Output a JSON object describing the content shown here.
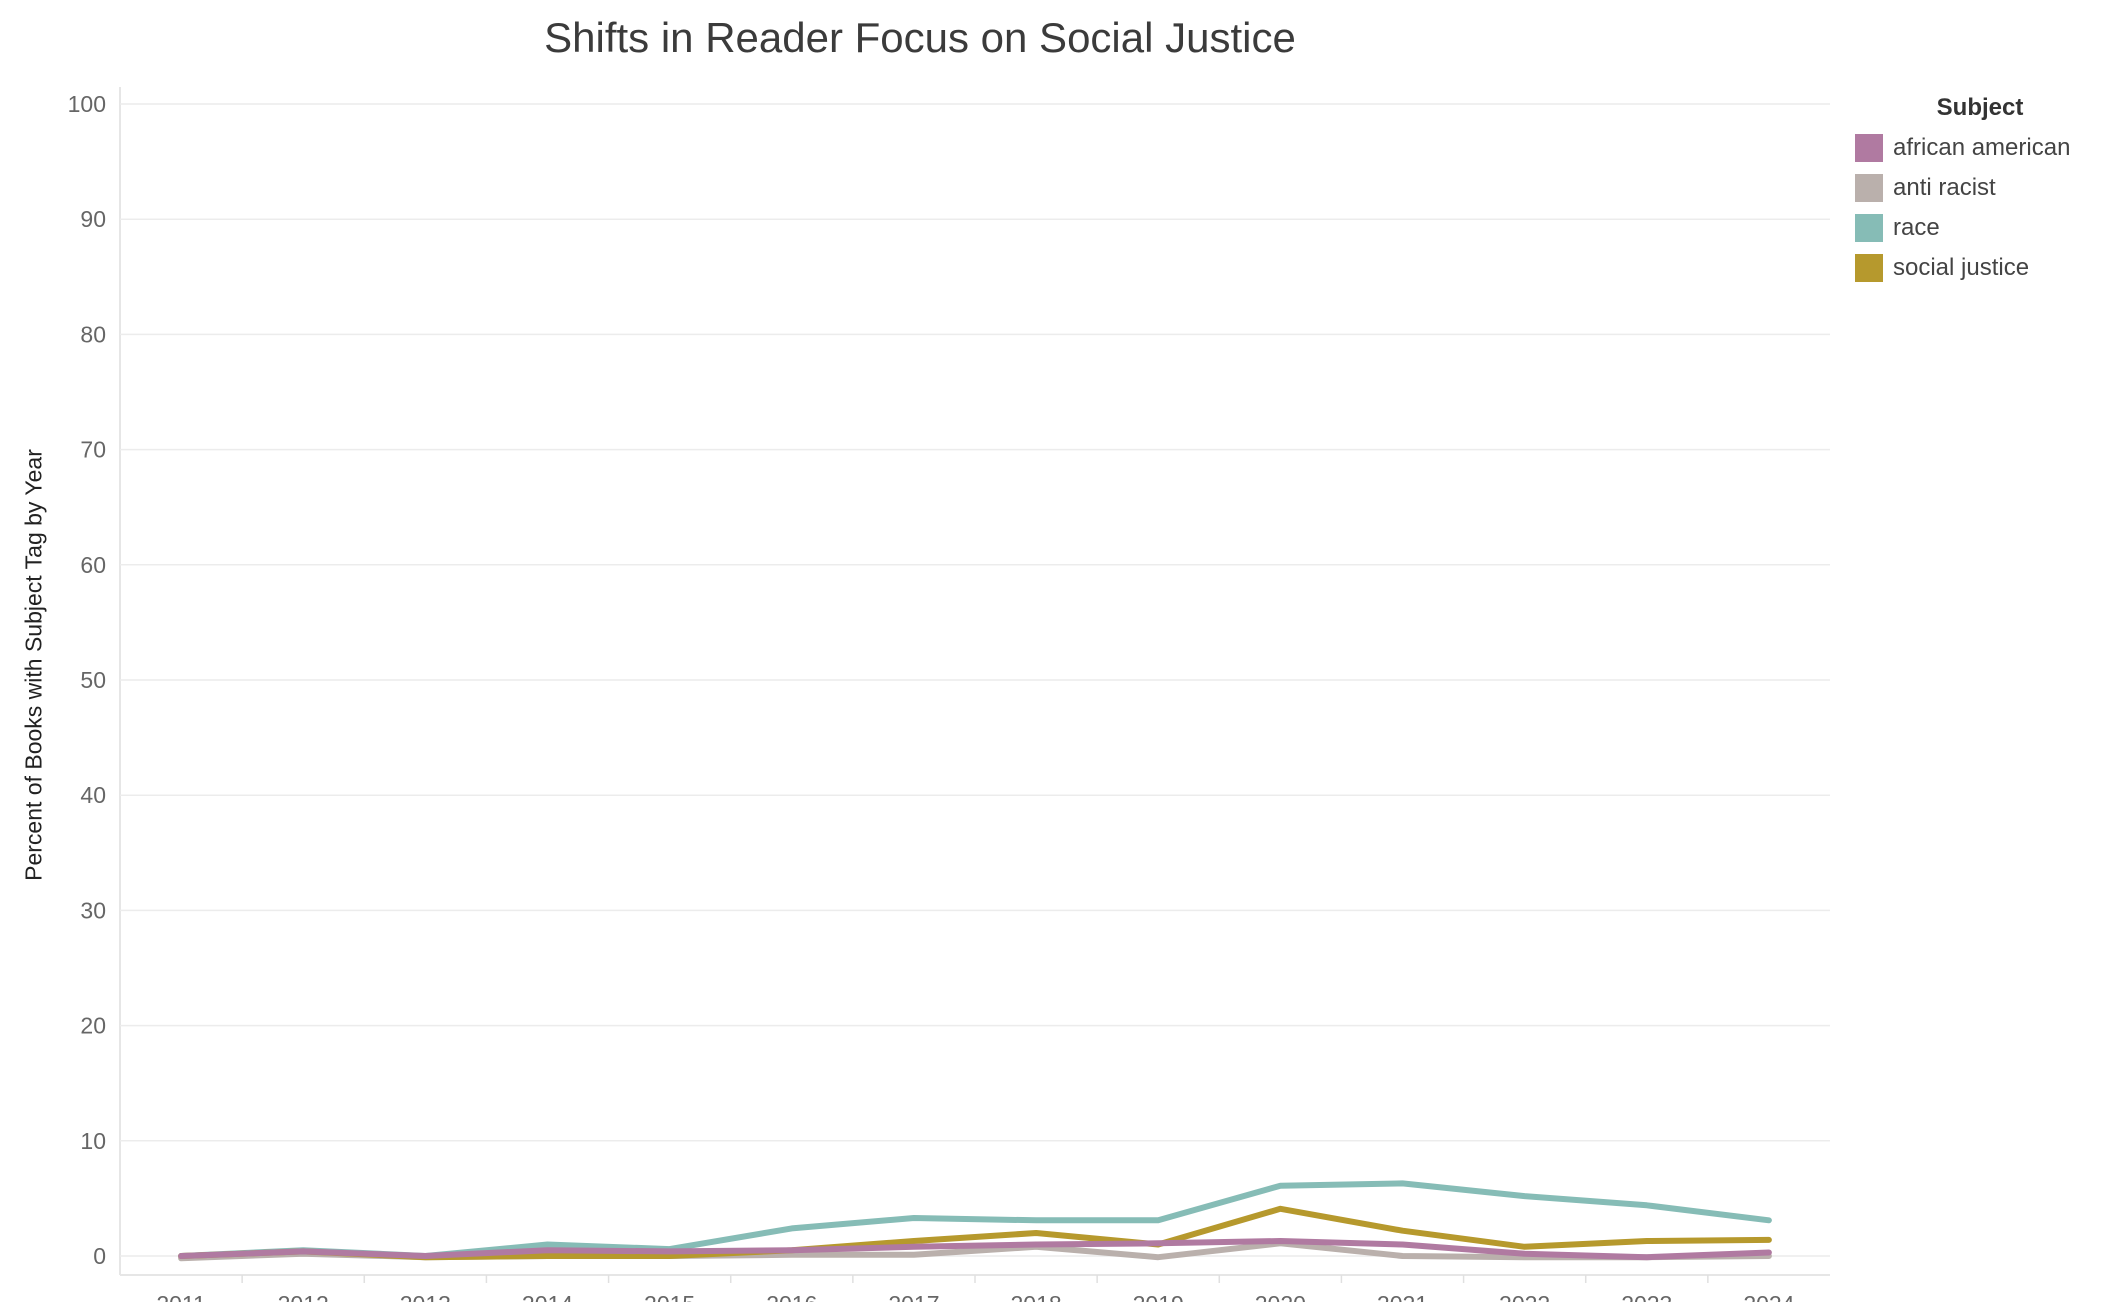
{
  "chart_data": {
    "type": "line",
    "title": "Shifts in Reader Focus on Social Justice",
    "ylabel": "Percent of Books with Subject Tag by Year",
    "xlabel": "",
    "ylim": [
      0,
      100
    ],
    "yticks": [
      0,
      10,
      20,
      30,
      40,
      50,
      60,
      70,
      80,
      90,
      100
    ],
    "x": [
      "2011",
      "2012",
      "2013",
      "2014",
      "2015",
      "2016",
      "2017",
      "2018",
      "2019",
      "2020",
      "2021",
      "2022",
      "2023",
      "2024"
    ],
    "legend_title": "Subject",
    "legend_position": "top-right",
    "grid": true,
    "series": [
      {
        "name": "race",
        "color": "#86bcb6",
        "values": [
          0.0,
          0.5,
          0.0,
          1.0,
          0.6,
          2.4,
          3.3,
          3.1,
          3.1,
          6.1,
          6.3,
          5.2,
          4.4,
          3.1
        ]
      },
      {
        "name": "anti racist",
        "color": "#bab0ac",
        "values": [
          -0.2,
          0.2,
          -0.1,
          0.0,
          0.0,
          0.1,
          0.1,
          0.8,
          -0.1,
          1.1,
          0.0,
          -0.1,
          -0.1,
          0.0
        ]
      },
      {
        "name": "social justice",
        "color": "#b6992d",
        "values": [
          0.0,
          0.4,
          -0.1,
          0.0,
          0.0,
          0.5,
          1.3,
          2.0,
          1.0,
          4.1,
          2.2,
          0.8,
          1.3,
          1.4
        ]
      },
      {
        "name": "african american",
        "color": "#b07aa1",
        "values": [
          0.0,
          0.4,
          0.0,
          0.5,
          0.4,
          0.5,
          0.8,
          1.0,
          1.1,
          1.3,
          1.0,
          0.2,
          -0.1,
          0.3
        ]
      }
    ]
  }
}
